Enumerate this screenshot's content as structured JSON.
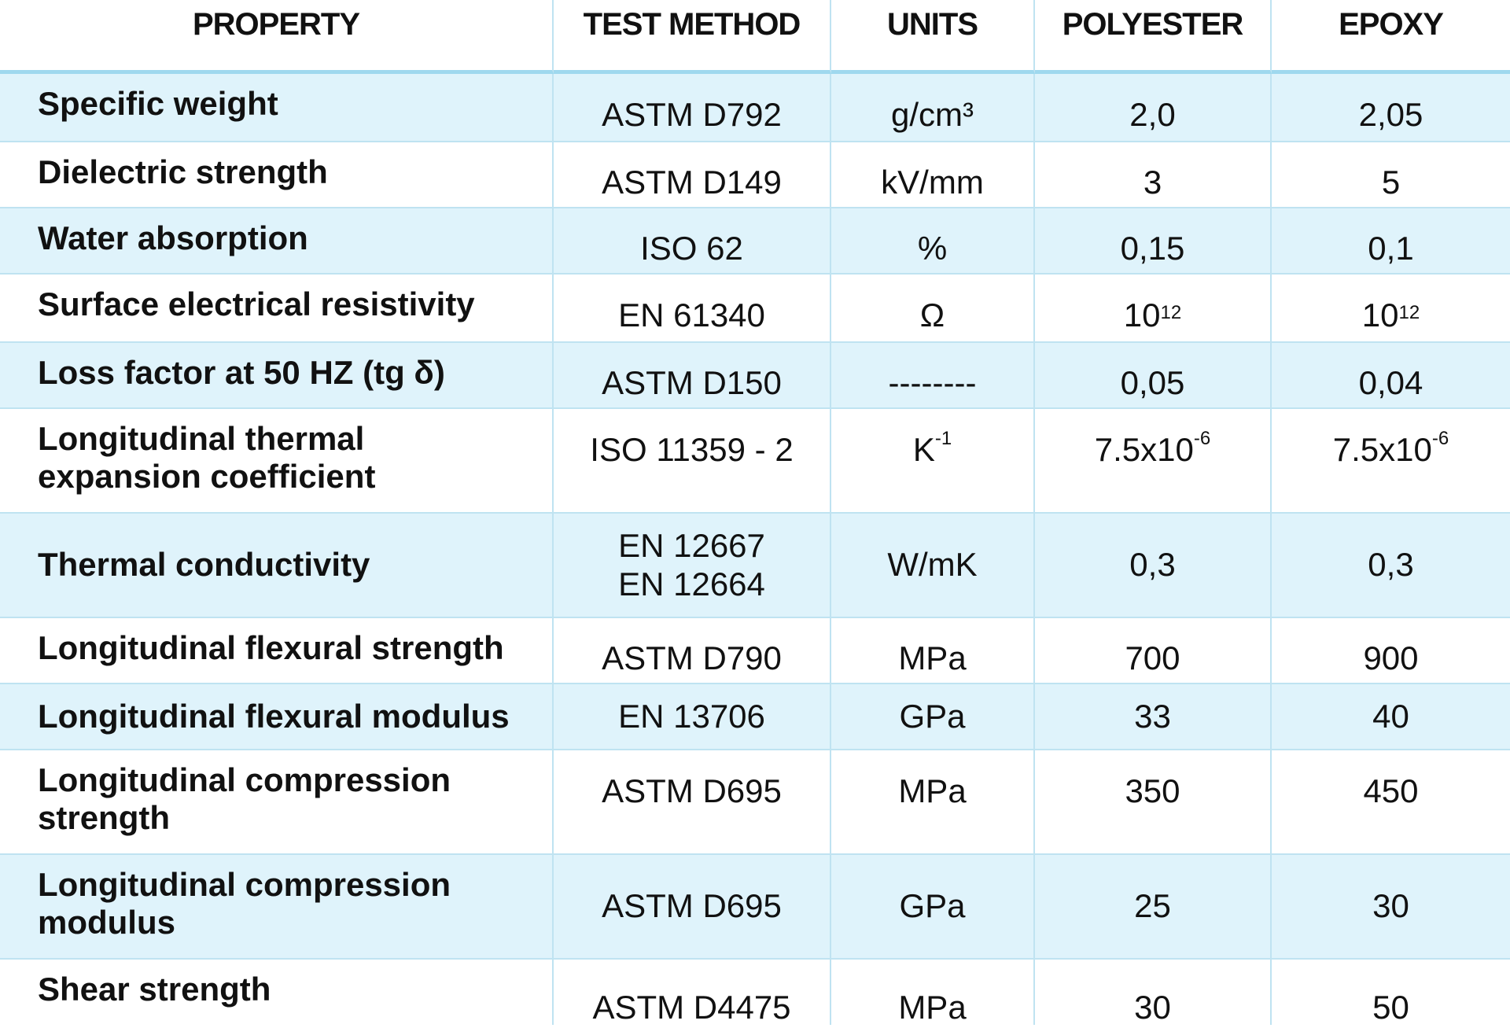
{
  "headers": [
    "PROPERTY",
    "TEST METHOD",
    "UNITS",
    "POLYESTER",
    "EPOXY"
  ],
  "rows": [
    {
      "property": "Specific weight",
      "method": "ASTM D792",
      "units": "g/cm³",
      "polyester": "2,0",
      "epoxy": "2,05"
    },
    {
      "property": "Dielectric strength",
      "method": "ASTM D149",
      "units": "kV/mm",
      "polyester": "3",
      "epoxy": "5"
    },
    {
      "property": "Water absorption",
      "method": "ISO 62",
      "units": "%",
      "polyester": "0,15",
      "epoxy": "0,1"
    },
    {
      "property": "Surface electrical resistivity",
      "method": "EN 61340",
      "units": "Ω",
      "polyester": "10",
      "polyester_exp": "12",
      "epoxy": "10",
      "epoxy_exp": "12"
    },
    {
      "property": "Loss factor at 50 HZ (tg δ)",
      "method": "ASTM D150",
      "units": "--------",
      "polyester": "0,05",
      "epoxy": "0,04"
    },
    {
      "property": "Longitudinal thermal expansion coefficient",
      "method": "ISO 11359 - 2",
      "units": "K",
      "units_exp": "-1",
      "polyester": "7.5x10",
      "polyester_exp": "-6",
      "epoxy": "7.5x10",
      "epoxy_exp": "-6"
    },
    {
      "property": "Thermal conductivity",
      "method": "EN 12667",
      "method2": "EN 12664",
      "units": "W/mK",
      "polyester": "0,3",
      "epoxy": "0,3"
    },
    {
      "property": "Longitudinal flexural strength",
      "method": "ASTM D790",
      "units": "MPa",
      "polyester": "700",
      "epoxy": "900"
    },
    {
      "property": "Longitudinal flexural modulus",
      "method": "EN 13706",
      "units": "GPa",
      "polyester": "33",
      "epoxy": "40"
    },
    {
      "property": "Longitudinal compression strength",
      "method": "ASTM D695",
      "units": "MPa",
      "polyester": "350",
      "epoxy": "450"
    },
    {
      "property": "Longitudinal compression modulus",
      "method": "ASTM D695",
      "units": "GPa",
      "polyester": "25",
      "epoxy": "30"
    },
    {
      "property": "Shear strength",
      "method": "ASTM D4475",
      "units": "MPa",
      "polyester": "30",
      "epoxy": "50"
    }
  ]
}
